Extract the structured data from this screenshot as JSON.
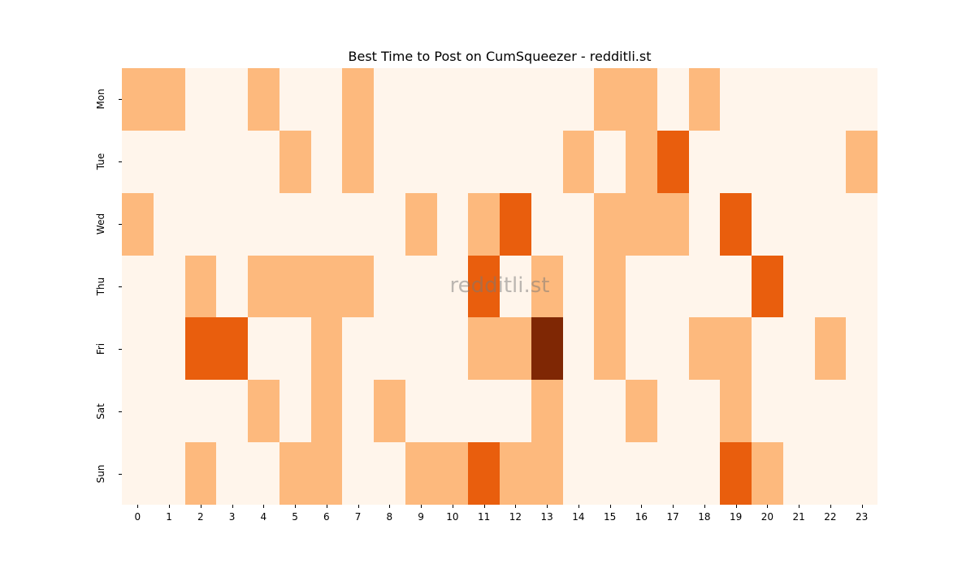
{
  "chart_data": {
    "type": "heatmap",
    "title": "Best Time to Post on CumSqueezer - redditli.st",
    "watermark": "redditli.st",
    "xlabel": "",
    "ylabel": "",
    "x": [
      "0",
      "1",
      "2",
      "3",
      "4",
      "5",
      "6",
      "7",
      "8",
      "9",
      "10",
      "11",
      "12",
      "13",
      "14",
      "15",
      "16",
      "17",
      "18",
      "19",
      "20",
      "21",
      "22",
      "23"
    ],
    "y": [
      "Mon",
      "Tue",
      "Wed",
      "Thu",
      "Fri",
      "Sat",
      "Sun"
    ],
    "values": [
      [
        1,
        1,
        0,
        0,
        1,
        0,
        0,
        1,
        0,
        0,
        0,
        0,
        0,
        0,
        0,
        1,
        1,
        0,
        1,
        0,
        0,
        0,
        0,
        0
      ],
      [
        0,
        0,
        0,
        0,
        0,
        1,
        0,
        1,
        0,
        0,
        0,
        0,
        0,
        0,
        1,
        0,
        1,
        2,
        0,
        0,
        0,
        0,
        0,
        1
      ],
      [
        1,
        0,
        0,
        0,
        0,
        0,
        0,
        0,
        0,
        1,
        0,
        1,
        2,
        0,
        0,
        1,
        1,
        1,
        0,
        2,
        0,
        0,
        0,
        0
      ],
      [
        0,
        0,
        1,
        0,
        1,
        1,
        1,
        1,
        0,
        0,
        0,
        2,
        0,
        1,
        0,
        1,
        0,
        0,
        0,
        0,
        2,
        0,
        0,
        0
      ],
      [
        0,
        0,
        2,
        2,
        0,
        0,
        1,
        0,
        0,
        0,
        0,
        1,
        1,
        3,
        0,
        1,
        0,
        0,
        1,
        1,
        0,
        0,
        1,
        0
      ],
      [
        0,
        0,
        0,
        0,
        1,
        0,
        1,
        0,
        1,
        0,
        0,
        0,
        0,
        1,
        0,
        0,
        1,
        0,
        0,
        1,
        0,
        0,
        0,
        0
      ],
      [
        0,
        0,
        1,
        0,
        0,
        1,
        1,
        0,
        0,
        1,
        1,
        2,
        1,
        1,
        0,
        0,
        0,
        0,
        0,
        2,
        1,
        0,
        0,
        0
      ]
    ],
    "colorscale": {
      "0": "#fff5eb",
      "1": "#fdb97d",
      "2": "#e95e0d",
      "3": "#7f2704"
    },
    "colormap": "Oranges",
    "colorbar": false,
    "grid": false
  }
}
